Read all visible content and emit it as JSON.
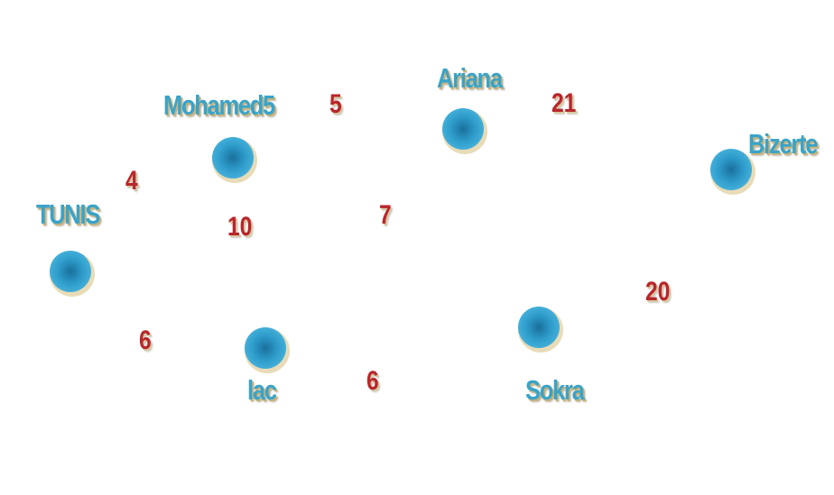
{
  "graph": {
    "nodes": [
      {
        "id": "tunis",
        "label": "TUNIS"
      },
      {
        "id": "mohamed5",
        "label": "Mohamed5"
      },
      {
        "id": "ariana",
        "label": "Ariana"
      },
      {
        "id": "bizerte",
        "label": "Bizerte"
      },
      {
        "id": "lac",
        "label": "lac"
      },
      {
        "id": "sokra",
        "label": "Sokra"
      }
    ],
    "weights": [
      "5",
      "21",
      "4",
      "10",
      "7",
      "20",
      "6",
      "6"
    ]
  },
  "colors": {
    "node": "#2e9ccb",
    "label": "#3aa3c8",
    "weight": "#b8262c"
  }
}
